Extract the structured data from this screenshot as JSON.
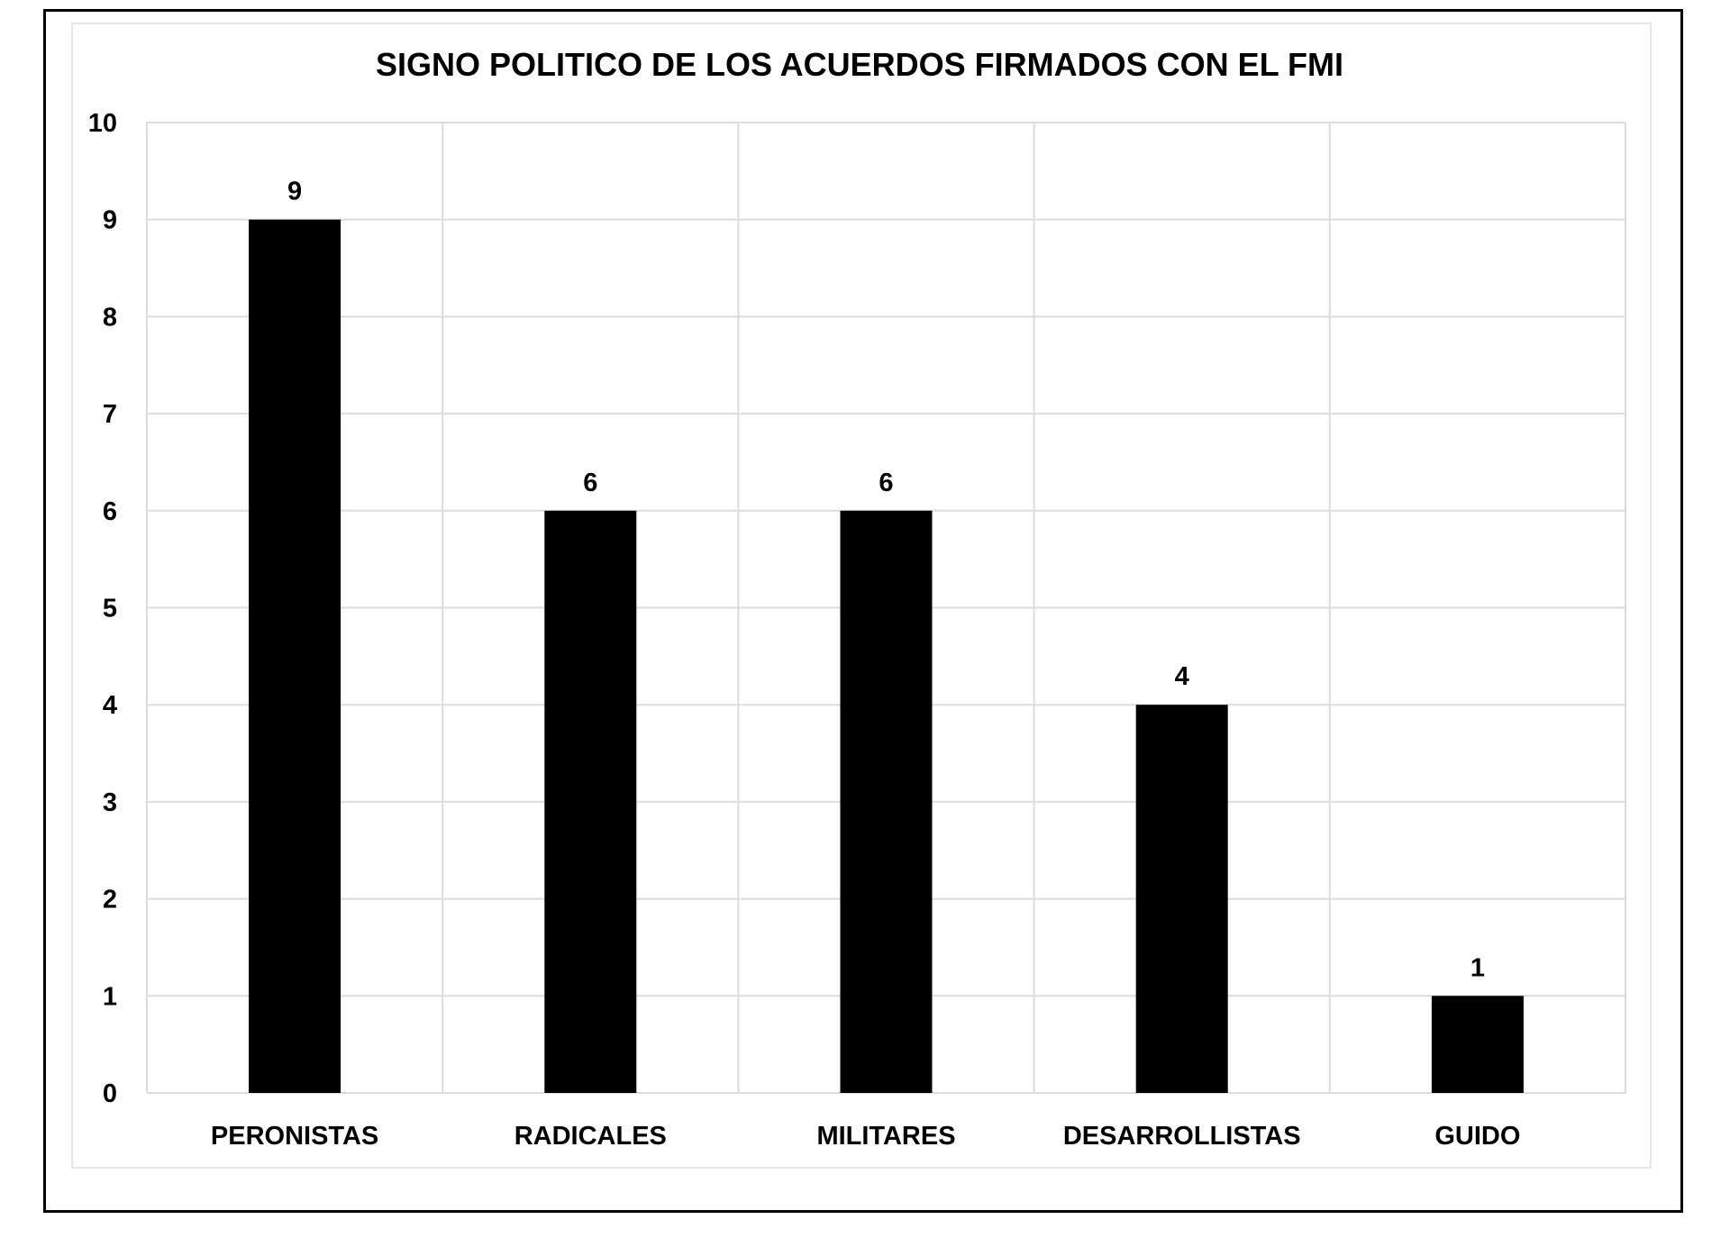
{
  "chart_data": {
    "type": "bar",
    "title": "SIGNO POLITICO DE LOS ACUERDOS FIRMADOS CON EL FMI",
    "xlabel": "",
    "ylabel": "",
    "categories": [
      "PERONISTAS",
      "RADICALES",
      "MILITARES",
      "DESARROLLISTAS",
      "GUIDO"
    ],
    "values": [
      9,
      6,
      6,
      4,
      1
    ],
    "data_labels": [
      "9",
      "6",
      "6",
      "4",
      "1"
    ],
    "ylim": [
      0,
      10
    ],
    "yticks": [
      "0",
      "1",
      "2",
      "3",
      "4",
      "5",
      "6",
      "7",
      "8",
      "9",
      "10"
    ],
    "grid": true,
    "legend": "none",
    "bar_color": "#000000",
    "grid_color": "#dcdcdc"
  }
}
